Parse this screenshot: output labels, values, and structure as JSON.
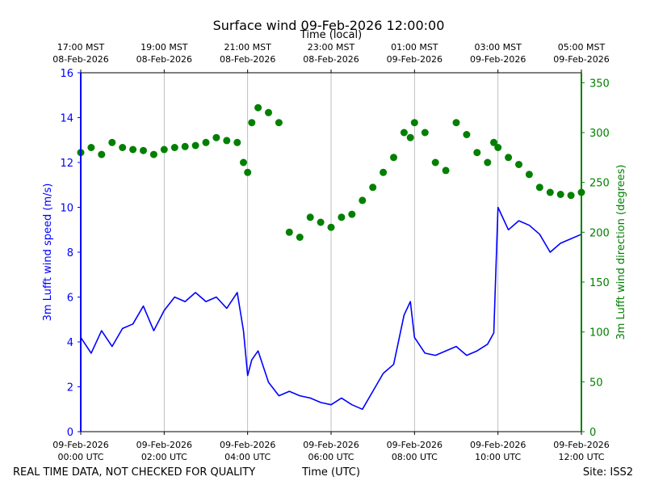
{
  "chart_data": {
    "type": "line",
    "title": "Surface wind 09-Feb-2026 12:00:00",
    "xlabel": "Time (UTC)",
    "xlabel_top": "Time (local)",
    "ylabel_left": "3m Lufft wind speed (m/s)",
    "ylabel_right": "3m Lufft wind direction (degrees)",
    "x_unit": "hours since 09-Feb-2026 00:00 UTC",
    "xlim": [
      0,
      12
    ],
    "ylim_left": [
      0,
      16
    ],
    "ylim_right": [
      0,
      360
    ],
    "grid": "vertical",
    "x_ticks_bottom": [
      {
        "x": 0,
        "date": "09-Feb-2026",
        "time": "00:00 UTC"
      },
      {
        "x": 2,
        "date": "09-Feb-2026",
        "time": "02:00 UTC"
      },
      {
        "x": 4,
        "date": "09-Feb-2026",
        "time": "04:00 UTC"
      },
      {
        "x": 6,
        "date": "09-Feb-2026",
        "time": "06:00 UTC"
      },
      {
        "x": 8,
        "date": "09-Feb-2026",
        "time": "08:00 UTC"
      },
      {
        "x": 10,
        "date": "09-Feb-2026",
        "time": "10:00 UTC"
      },
      {
        "x": 12,
        "date": "09-Feb-2026",
        "time": "12:00 UTC"
      }
    ],
    "x_ticks_top": [
      {
        "x": 0,
        "time": "17:00 MST",
        "date": "08-Feb-2026"
      },
      {
        "x": 2,
        "time": "19:00 MST",
        "date": "08-Feb-2026"
      },
      {
        "x": 4,
        "time": "21:00 MST",
        "date": "08-Feb-2026"
      },
      {
        "x": 6,
        "time": "23:00 MST",
        "date": "08-Feb-2026"
      },
      {
        "x": 8,
        "time": "01:00 MST",
        "date": "09-Feb-2026"
      },
      {
        "x": 10,
        "time": "03:00 MST",
        "date": "09-Feb-2026"
      },
      {
        "x": 12,
        "time": "05:00 MST",
        "date": "09-Feb-2026"
      }
    ],
    "y_ticks_left": [
      0,
      2,
      4,
      6,
      8,
      10,
      12,
      14,
      16
    ],
    "y_ticks_right": [
      0,
      50,
      100,
      150,
      200,
      250,
      300,
      350
    ],
    "series": [
      {
        "name": "3m Lufft wind speed",
        "kind": "line",
        "axis": "left",
        "color": "#0000ff",
        "x": [
          0,
          0.25,
          0.5,
          0.75,
          1,
          1.25,
          1.5,
          1.75,
          2,
          2.25,
          2.5,
          2.75,
          3,
          3.25,
          3.5,
          3.75,
          3.9,
          4,
          4.1,
          4.25,
          4.5,
          4.75,
          5,
          5.25,
          5.5,
          5.75,
          6,
          6.25,
          6.5,
          6.75,
          7,
          7.25,
          7.5,
          7.75,
          7.9,
          8,
          8.25,
          8.5,
          8.75,
          9,
          9.25,
          9.5,
          9.75,
          9.9,
          10,
          10.25,
          10.5,
          10.75,
          11,
          11.25,
          11.5,
          11.75,
          12
        ],
        "y": [
          4.2,
          3.5,
          4.5,
          3.8,
          4.6,
          4.8,
          5.6,
          4.5,
          5.4,
          6.0,
          5.8,
          6.2,
          5.8,
          6.0,
          5.5,
          6.2,
          4.5,
          2.5,
          3.2,
          3.6,
          2.2,
          1.6,
          1.8,
          1.6,
          1.5,
          1.3,
          1.2,
          1.5,
          1.2,
          1.0,
          1.8,
          2.6,
          3.0,
          5.2,
          5.8,
          4.2,
          3.5,
          3.4,
          3.6,
          3.8,
          3.4,
          3.6,
          3.9,
          4.4,
          10.0,
          9.0,
          9.4,
          9.2,
          8.8,
          8.0,
          8.4,
          8.6,
          8.8
        ]
      },
      {
        "name": "3m Lufft wind direction",
        "kind": "scatter",
        "axis": "right",
        "color": "#008000",
        "x": [
          0,
          0.25,
          0.5,
          0.75,
          1,
          1.25,
          1.5,
          1.75,
          2,
          2.25,
          2.5,
          2.75,
          3,
          3.25,
          3.5,
          3.75,
          3.9,
          4,
          4.1,
          4.25,
          4.5,
          4.75,
          5,
          5.25,
          5.5,
          5.75,
          6,
          6.25,
          6.5,
          6.75,
          7,
          7.25,
          7.5,
          7.75,
          7.9,
          8,
          8.25,
          8.5,
          8.75,
          9,
          9.25,
          9.5,
          9.75,
          9.9,
          10,
          10.25,
          10.5,
          10.75,
          11,
          11.25,
          11.5,
          11.75,
          12
        ],
        "y": [
          280,
          285,
          278,
          290,
          285,
          283,
          282,
          278,
          283,
          285,
          286,
          287,
          290,
          295,
          292,
          290,
          270,
          260,
          310,
          325,
          320,
          310,
          200,
          195,
          215,
          210,
          205,
          215,
          218,
          232,
          245,
          260,
          275,
          300,
          295,
          310,
          300,
          270,
          262,
          310,
          298,
          280,
          270,
          290,
          285,
          275,
          268,
          258,
          245,
          240,
          238,
          237,
          240
        ]
      }
    ]
  },
  "footer": {
    "disclaimer": "REAL TIME DATA, NOT CHECKED FOR QUALITY",
    "site": "Site: ISS2"
  }
}
